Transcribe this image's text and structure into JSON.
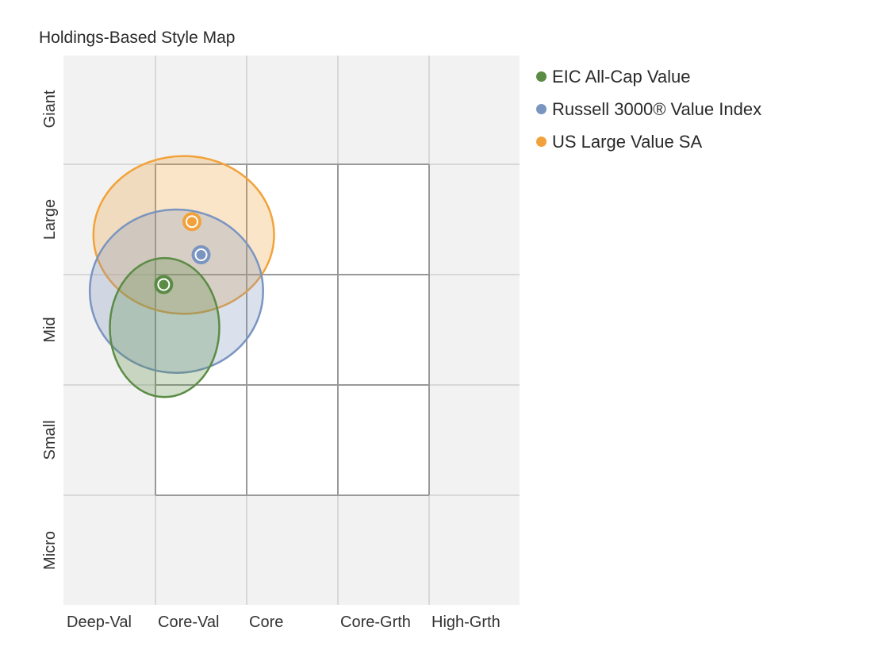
{
  "chart_data": {
    "type": "scatter",
    "title": "Holdings-Based Style Map",
    "x_categories": [
      "Deep-Val",
      "Core-Val",
      "Core",
      "Core-Grth",
      "High-Grth"
    ],
    "y_categories": [
      "Micro",
      "Small",
      "Mid",
      "Large",
      "Giant"
    ],
    "xlim": [
      -100,
      400
    ],
    "ylim": [
      -100,
      400
    ],
    "grid": true,
    "legend_position": "right",
    "reference_box": {
      "x": [
        0,
        300
      ],
      "y": [
        0,
        300
      ]
    },
    "series": [
      {
        "name": "EIC All-Cap Value",
        "color": "#5b8c45",
        "centroid": [
          9,
          191
        ],
        "ellipse": {
          "rx": 120,
          "ry": 126
        }
      },
      {
        "name": "Russell 3000® Value Index",
        "color": "#7a95c0",
        "centroid": [
          50,
          218
        ],
        "ellipse": {
          "rx": 190,
          "ry": 148
        }
      },
      {
        "name": "US Large Value SA",
        "color": "#f2a23a",
        "centroid": [
          40,
          248
        ],
        "ellipse": {
          "rx": 198,
          "ry": 143
        }
      }
    ]
  }
}
